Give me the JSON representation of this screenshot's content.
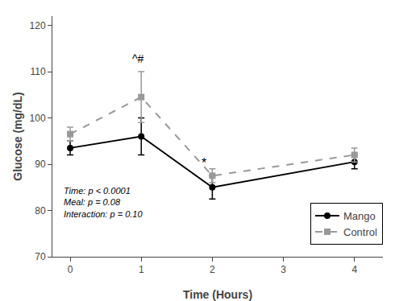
{
  "chart_data": {
    "type": "line",
    "x": [
      0,
      1,
      2,
      4
    ],
    "series": [
      {
        "name": "Mango",
        "color": "#000000",
        "line_style": "solid",
        "marker": "circle",
        "values": [
          93.5,
          96.0,
          85.0,
          90.5
        ],
        "errors": [
          1.5,
          4.0,
          2.5,
          1.5
        ]
      },
      {
        "name": "Control",
        "color": "#999999",
        "line_style": "dashed",
        "marker": "square",
        "values": [
          96.5,
          104.5,
          87.5,
          92.0
        ],
        "errors": [
          1.5,
          5.5,
          1.5,
          1.5
        ]
      }
    ],
    "xlabel": "Time (Hours)",
    "ylabel": "Glucose (mg/dL)",
    "xlim": [
      -0.25,
      4.4
    ],
    "ylim": [
      70,
      122
    ],
    "xticks": [
      0,
      1,
      2,
      3,
      4
    ],
    "yticks": [
      70,
      80,
      90,
      100,
      110,
      120
    ],
    "annotations": [
      {
        "text": "^#",
        "x": 0.85,
        "y": 111.0
      },
      {
        "text": "*",
        "x": 1.88,
        "y": 88.5
      }
    ],
    "stats_text": "Time: p < 0.0001\nMeal: p = 0.08\nInteraction: p = 0.10",
    "legend": "lower right",
    "grid": false
  }
}
